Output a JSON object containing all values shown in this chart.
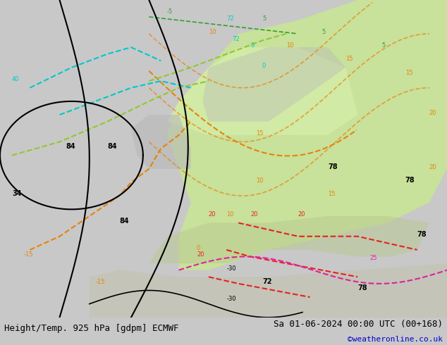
{
  "title_left": "Height/Temp. 925 hPa [gdpm] ECMWF",
  "title_right": "Sa 01-06-2024 00:00 UTC (00+168)",
  "credit": "©weatheronline.co.uk",
  "background_color": "#d3d3d3",
  "land_color_warm": "#c8e6a0",
  "land_color_mid": "#d8edb0",
  "sea_color": "#e8e8e8",
  "font_size_title": 9,
  "font_size_credit": 8,
  "credit_color": "#0000cc"
}
